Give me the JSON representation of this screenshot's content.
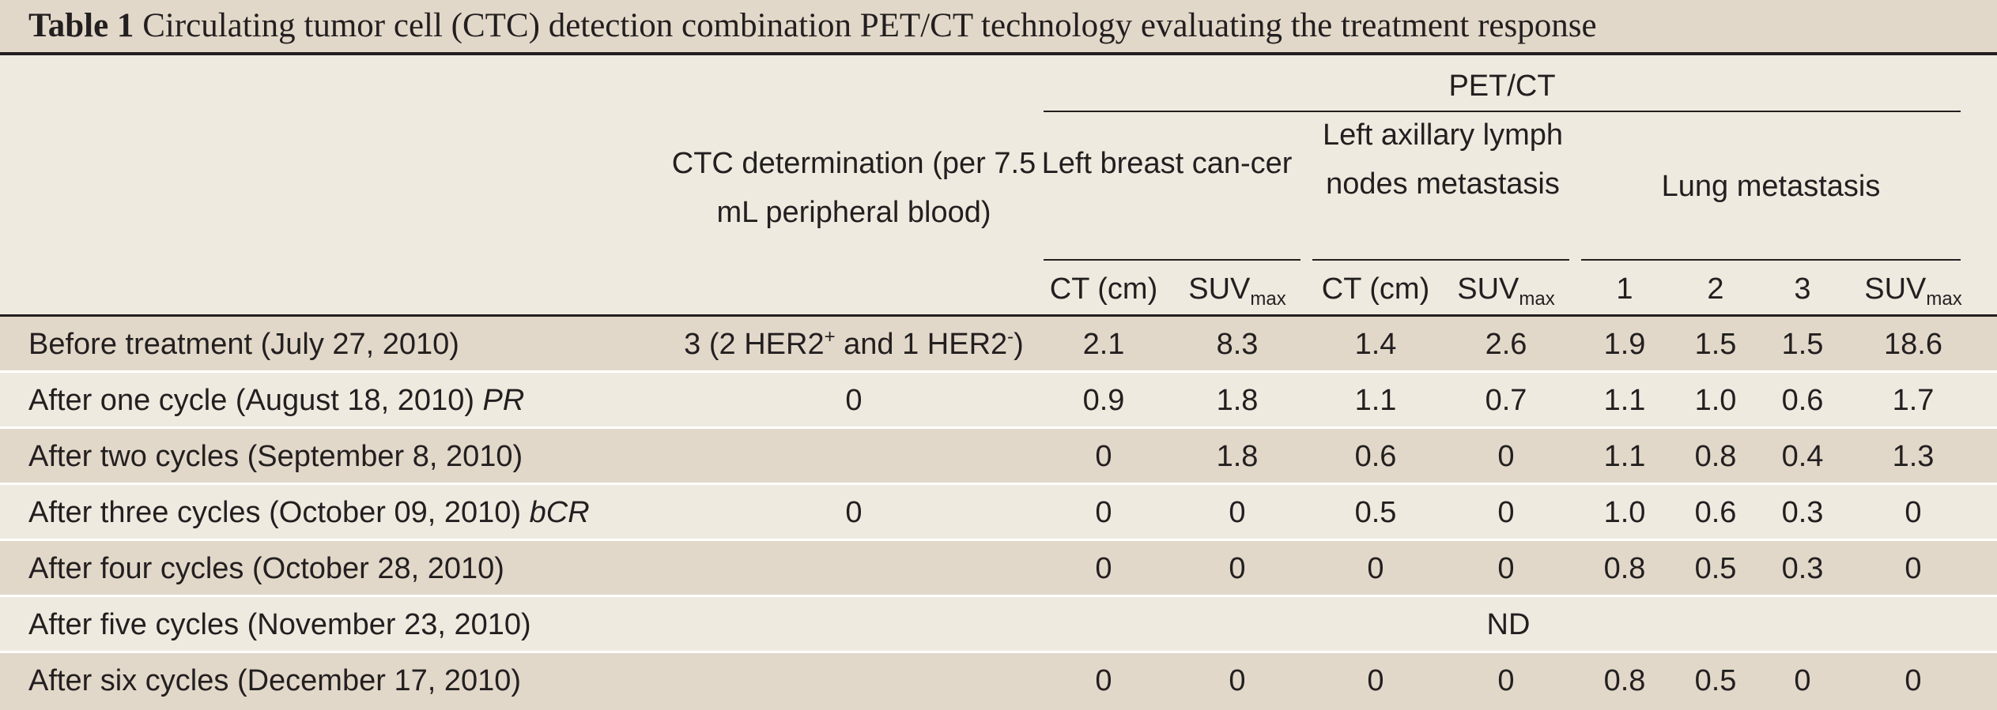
{
  "title": {
    "label": "Table 1",
    "text": "Circulating tumor cell (CTC) detection combination PET/CT technology evaluating the treatment response"
  },
  "header": {
    "ctc": "CTC determination (per 7.5 mL peripheral blood)",
    "petct": "PET/CT",
    "group1": "Left breast can-cer",
    "group2": "Left axillary lymph nodes metastasis",
    "group3": "Lung metastasis",
    "ct": "CT (cm)",
    "suv": "SUV",
    "suv_sub": "max",
    "lung1": "1",
    "lung2": "2",
    "lung3": "3"
  },
  "rows": [
    {
      "label": "Before treatment (July 27, 2010)",
      "label_em": "",
      "ctc_main": "3 (2 HER2",
      "ctc_sup1": "+",
      "ctc_mid": " and 1 HER2",
      "ctc_sup2": "-",
      "ctc_end": ")",
      "values": [
        "2.1",
        "8.3",
        "1.4",
        "2.6",
        "1.9",
        "1.5",
        "1.5",
        "18.6"
      ]
    },
    {
      "label": "After one cycle (August 18, 2010) ",
      "label_em": "PR",
      "ctc": "0",
      "values": [
        "0.9",
        "1.8",
        "1.1",
        "0.7",
        "1.1",
        "1.0",
        "0.6",
        "1.7"
      ]
    },
    {
      "label": "After two cycles (September 8, 2010)",
      "label_em": "",
      "ctc": "",
      "values": [
        "0",
        "1.8",
        "0.6",
        "0",
        "1.1",
        "0.8",
        "0.4",
        "1.3"
      ]
    },
    {
      "label": "After three cycles (October 09, 2010) ",
      "label_em": "bCR",
      "ctc": "0",
      "values": [
        "0",
        "0",
        "0.5",
        "0",
        "1.0",
        "0.6",
        "0.3",
        "0"
      ]
    },
    {
      "label": "After four cycles (October 28, 2010)",
      "label_em": "",
      "ctc": "",
      "values": [
        "0",
        "0",
        "0",
        "0",
        "0.8",
        "0.5",
        "0.3",
        "0"
      ]
    },
    {
      "label": "After five cycles (November 23, 2010)",
      "label_em": "",
      "ctc": "",
      "merged": "ND"
    },
    {
      "label": "After six cycles (December 17, 2010)",
      "label_em": "",
      "ctc": "",
      "values": [
        "0",
        "0",
        "0",
        "0",
        "0.8",
        "0.5",
        "0",
        "0"
      ]
    }
  ]
}
